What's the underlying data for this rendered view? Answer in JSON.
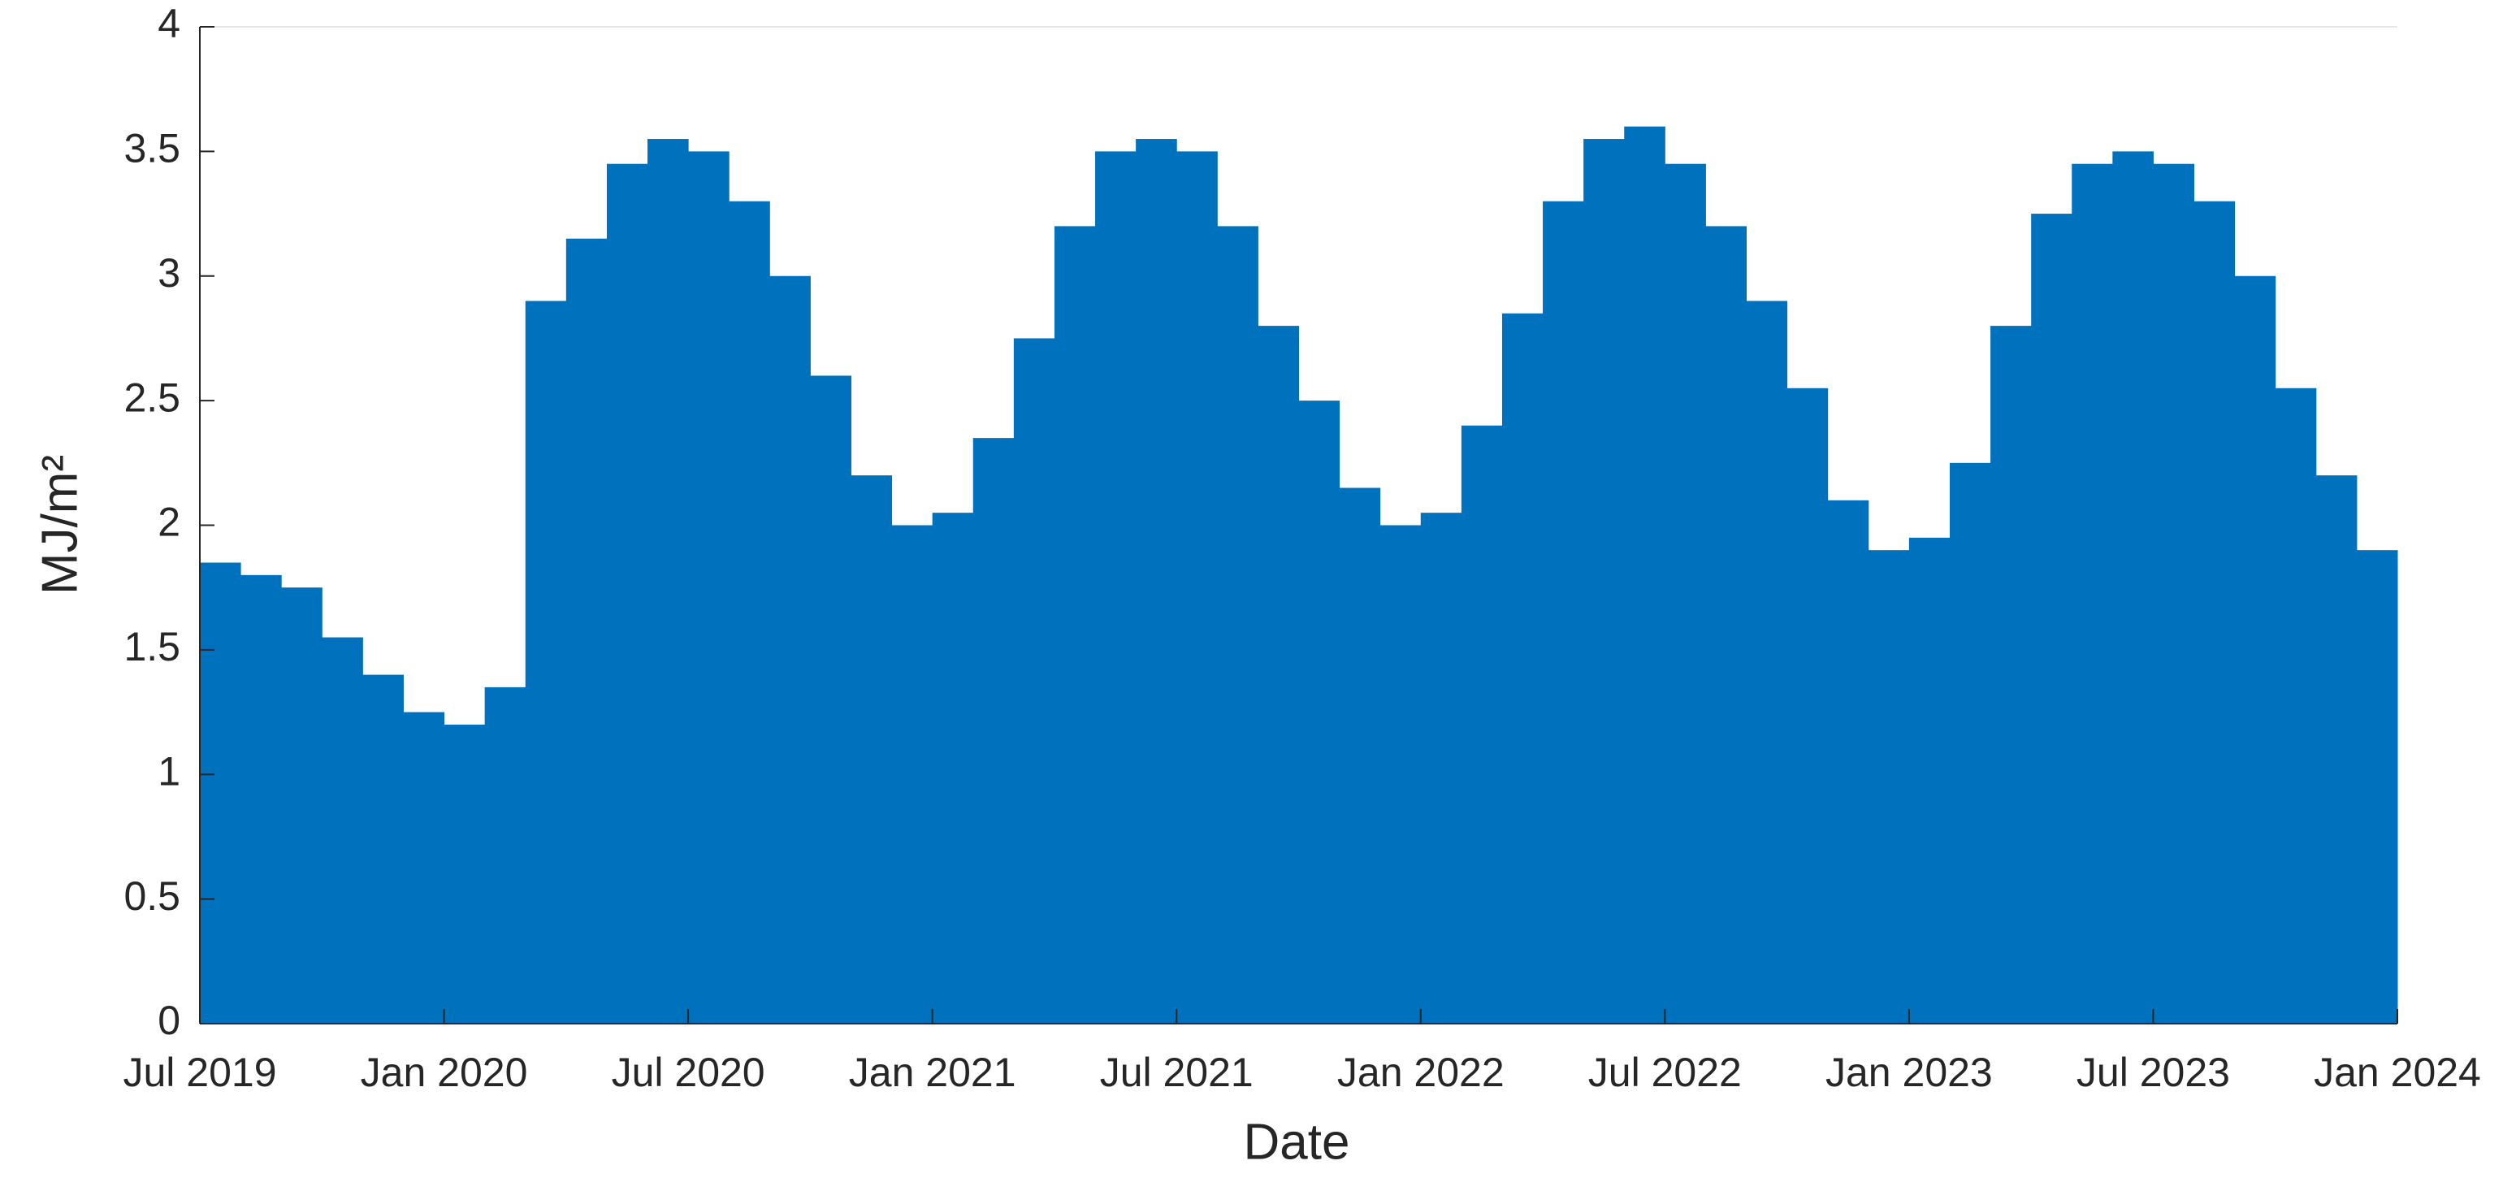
{
  "chart_data": {
    "type": "bar",
    "x_label": "Date",
    "y_label": "MJ/m²",
    "x": [
      "2019-07",
      "2019-08",
      "2019-09",
      "2019-10",
      "2019-11",
      "2019-12",
      "2020-01",
      "2020-02",
      "2020-03",
      "2020-04",
      "2020-05",
      "2020-06",
      "2020-07",
      "2020-08",
      "2020-09",
      "2020-10",
      "2020-11",
      "2020-12",
      "2021-01",
      "2021-02",
      "2021-03",
      "2021-04",
      "2021-05",
      "2021-06",
      "2021-07",
      "2021-08",
      "2021-09",
      "2021-10",
      "2021-11",
      "2021-12",
      "2022-01",
      "2022-02",
      "2022-03",
      "2022-04",
      "2022-05",
      "2022-06",
      "2022-07",
      "2022-08",
      "2022-09",
      "2022-10",
      "2022-11",
      "2022-12",
      "2023-01",
      "2023-02",
      "2023-03",
      "2023-04",
      "2023-05",
      "2023-06",
      "2023-07",
      "2023-08",
      "2023-09",
      "2023-10",
      "2023-11",
      "2023-12"
    ],
    "values": [
      1.85,
      1.8,
      1.75,
      1.55,
      1.4,
      1.25,
      1.2,
      1.35,
      2.9,
      3.15,
      3.45,
      3.55,
      3.5,
      3.3,
      3.0,
      2.6,
      2.2,
      2.0,
      2.05,
      2.35,
      2.75,
      3.2,
      3.5,
      3.55,
      3.5,
      3.2,
      2.8,
      2.5,
      2.15,
      2.0,
      2.05,
      2.4,
      2.85,
      3.3,
      3.55,
      3.6,
      3.45,
      3.2,
      2.9,
      2.55,
      2.1,
      1.9,
      1.95,
      2.25,
      2.8,
      3.25,
      3.45,
      3.5,
      3.45,
      3.3,
      3.0,
      2.55,
      2.2,
      1.9
    ],
    "color": "#0072bd",
    "xlim": [
      "2019-07",
      "2024-01"
    ],
    "xticks": [
      {
        "value": "2019-07",
        "label": "Jul 2019"
      },
      {
        "value": "2020-01",
        "label": "Jan 2020"
      },
      {
        "value": "2020-07",
        "label": "Jul 2020"
      },
      {
        "value": "2021-01",
        "label": "Jan 2021"
      },
      {
        "value": "2021-07",
        "label": "Jul 2021"
      },
      {
        "value": "2022-01",
        "label": "Jan 2022"
      },
      {
        "value": "2022-07",
        "label": "Jul 2022"
      },
      {
        "value": "2023-01",
        "label": "Jan 2023"
      },
      {
        "value": "2023-07",
        "label": "Jul 2023"
      },
      {
        "value": "2024-01",
        "label": "Jan 2024"
      }
    ],
    "ylim": [
      0,
      4
    ],
    "yticks": [
      0,
      0.5,
      1,
      1.5,
      2,
      2.5,
      3,
      3.5,
      4
    ]
  }
}
